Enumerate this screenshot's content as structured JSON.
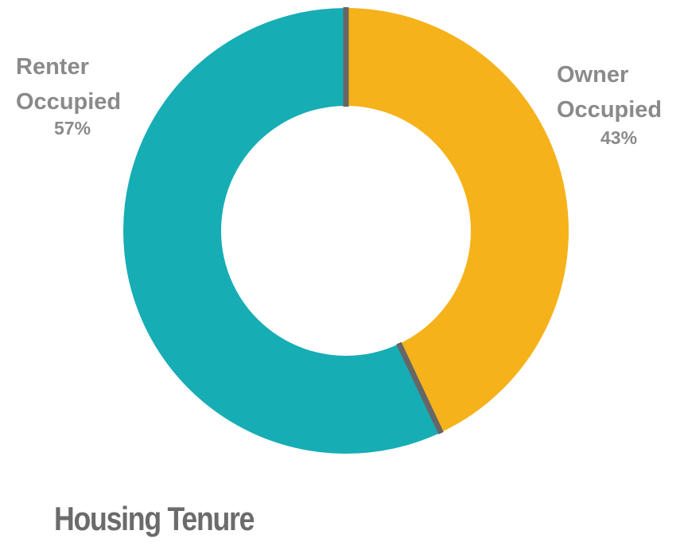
{
  "chart_data": {
    "type": "donut",
    "title": "Housing Tenure",
    "categories": [
      "Owner Occupied",
      "Renter Occupied"
    ],
    "values": [
      43,
      57
    ],
    "value_labels": [
      "43%",
      "57%"
    ],
    "colors": [
      "#f6b21b",
      "#17adb5"
    ]
  }
}
